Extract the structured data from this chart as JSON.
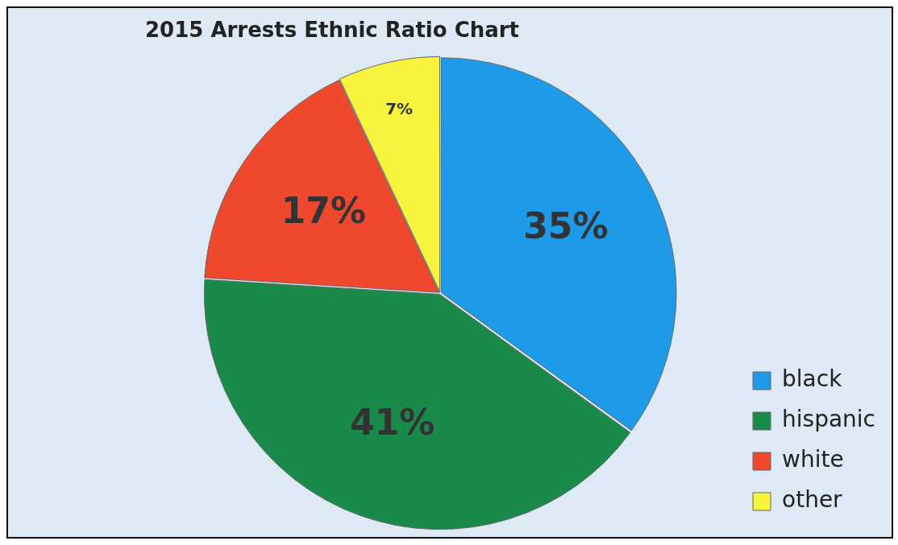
{
  "chart_data": {
    "type": "pie",
    "title": "2015 Arrests Ethnic Ratio Chart",
    "categories": [
      "black",
      "hispanic",
      "white",
      "other"
    ],
    "values": [
      35,
      41,
      17,
      7
    ],
    "colors": [
      "#1e9be8",
      "#1a8a4a",
      "#f0482c",
      "#f8f33c"
    ],
    "value_labels": [
      "35%",
      "41%",
      "17%",
      "7%"
    ],
    "legend": "bottom right"
  }
}
